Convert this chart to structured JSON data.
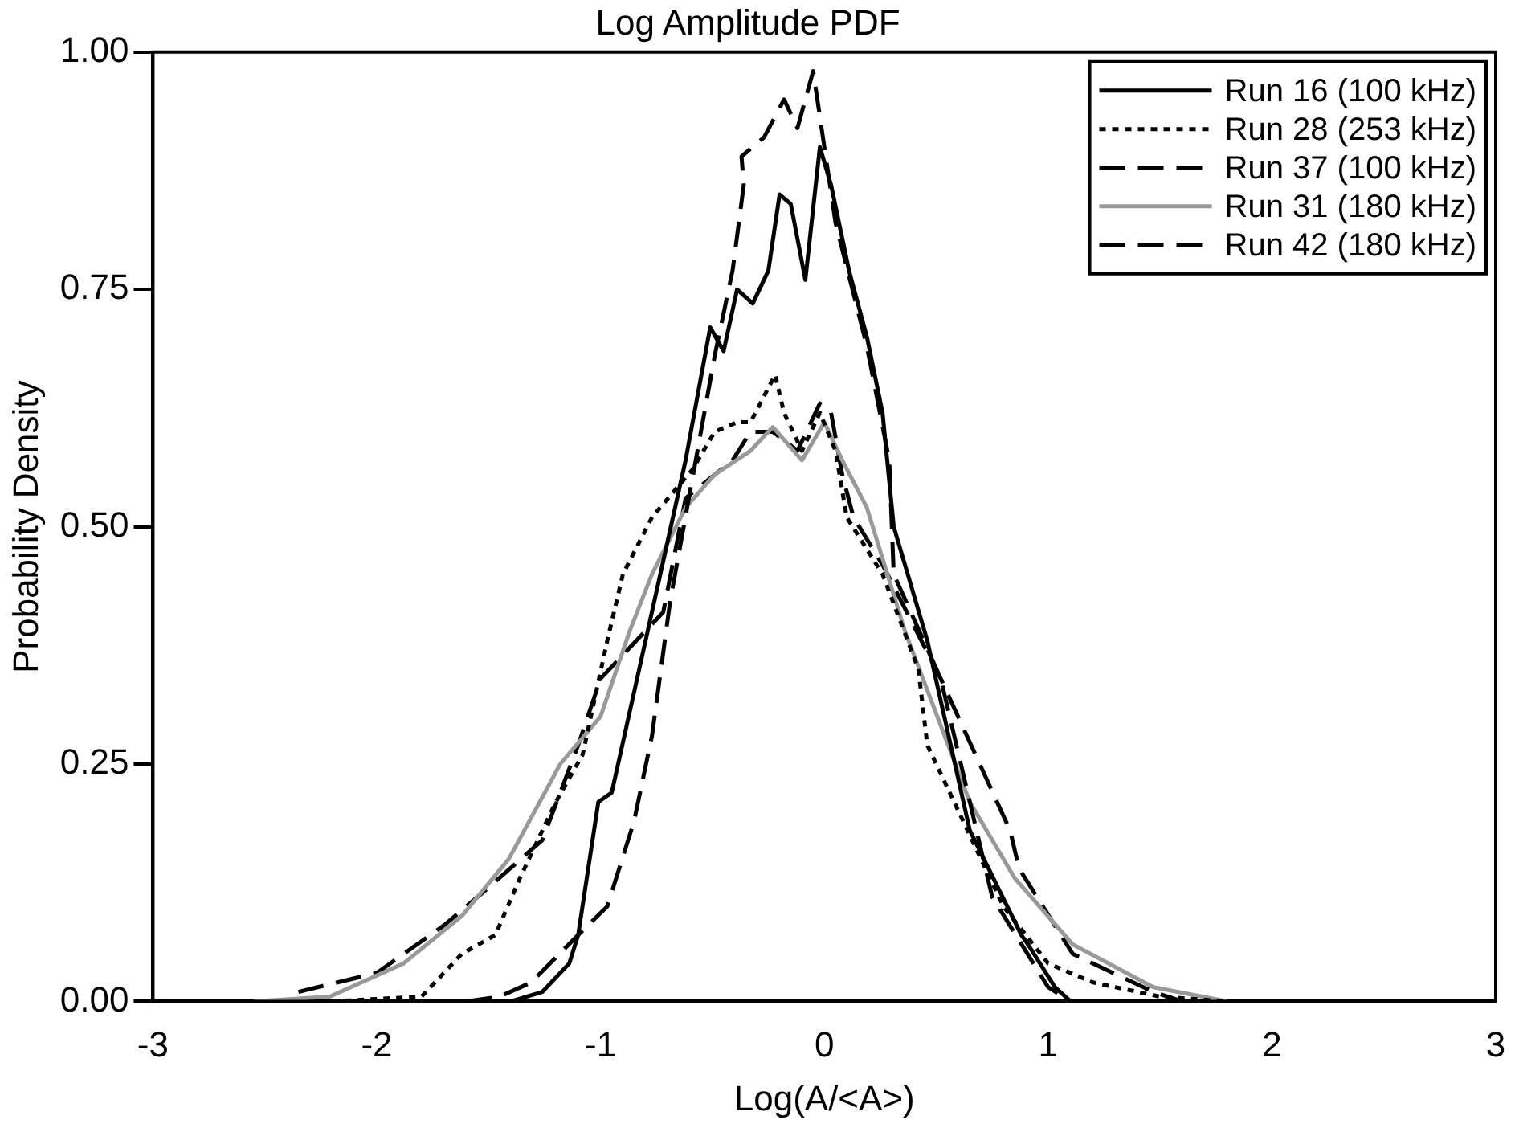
{
  "chart_data": {
    "type": "line",
    "title": "Log Amplitude PDF",
    "xlabel": "Log(A/<A>)",
    "ylabel": "Probability Density",
    "xlim": [
      -3,
      3
    ],
    "xticks": [
      -3,
      -2,
      -1,
      0,
      1,
      2,
      3
    ],
    "ylim": [
      0,
      1
    ],
    "yticks": [
      {
        "value": 0,
        "label": "0.00"
      },
      {
        "value": 0.25,
        "label": "0.25"
      },
      {
        "value": 0.5,
        "label": "0.50"
      },
      {
        "value": 0.75,
        "label": "0.75"
      },
      {
        "value": 1,
        "label": "1.00"
      }
    ],
    "grid": false,
    "legend": "top right",
    "marker": "none",
    "series": [
      {
        "name": "Run 16 (100 kHz)",
        "color": "#000000",
        "line_style": "solid",
        "x": [
          -1.4,
          -1.26,
          -1.14,
          -1.1,
          -1.01,
          -0.95,
          -0.78,
          -0.62,
          -0.51,
          -0.45,
          -0.39,
          -0.32,
          -0.25,
          -0.2,
          -0.15,
          -0.085,
          -0.02,
          0.03,
          0.11,
          0.19,
          0.26,
          0.31,
          0.46,
          0.65,
          0.88,
          0.91,
          1.03,
          1.1
        ],
        "values": [
          0,
          0.01,
          0.04,
          0.07,
          0.21,
          0.22,
          0.4,
          0.57,
          0.71,
          0.685,
          0.75,
          0.735,
          0.77,
          0.85,
          0.84,
          0.76,
          0.9,
          0.86,
          0.77,
          0.7,
          0.62,
          0.5,
          0.38,
          0.18,
          0.07,
          0.06,
          0.015,
          0
        ]
      },
      {
        "name": "Run 28 (253 kHz)",
        "color": "#000000",
        "line_style": "dotted",
        "x": [
          -2.2,
          -1.8,
          -1.62,
          -1.47,
          -1.36,
          -1.2,
          -1.08,
          -0.97,
          -0.9,
          -0.77,
          -0.59,
          -0.49,
          -0.39,
          -0.33,
          -0.22,
          -0.18,
          -0.1,
          -0.02,
          0.05,
          0.1,
          0.26,
          0.42,
          0.46,
          0.5,
          0.6,
          0.8,
          1.0,
          1.2,
          1.5,
          1.8
        ],
        "values": [
          0,
          0.005,
          0.05,
          0.07,
          0.13,
          0.21,
          0.26,
          0.38,
          0.45,
          0.51,
          0.56,
          0.6,
          0.61,
          0.61,
          0.66,
          0.62,
          0.58,
          0.62,
          0.58,
          0.51,
          0.45,
          0.35,
          0.27,
          0.25,
          0.2,
          0.1,
          0.04,
          0.02,
          0.005,
          0
        ]
      },
      {
        "name": "Run 37 (100 kHz)",
        "color": "#000000",
        "line_style": "dashed",
        "x": [
          -1.6,
          -1.45,
          -1.31,
          -1.1,
          -0.97,
          -0.85,
          -0.77,
          -0.69,
          -0.49,
          -0.41,
          -0.36,
          -0.37,
          -0.27,
          -0.18,
          -0.12,
          -0.05,
          0.05,
          0.19,
          0.29,
          0.31,
          0.52,
          0.75,
          1.0,
          1.1
        ],
        "values": [
          0,
          0.005,
          0.02,
          0.07,
          0.1,
          0.19,
          0.28,
          0.42,
          0.68,
          0.77,
          0.86,
          0.89,
          0.91,
          0.95,
          0.92,
          0.98,
          0.82,
          0.69,
          0.57,
          0.45,
          0.34,
          0.11,
          0.015,
          0
        ]
      },
      {
        "name": "Run 31 (180 kHz)",
        "color": "#999999",
        "line_style": "solid",
        "x": [
          -2.55,
          -2.21,
          -1.88,
          -1.62,
          -1.41,
          -1.18,
          -1.0,
          -0.87,
          -0.77,
          -0.62,
          -0.49,
          -0.33,
          -0.23,
          -0.1,
          0,
          0.08,
          0.19,
          0.36,
          0.65,
          0.85,
          1.11,
          1.47,
          1.8
        ],
        "values": [
          0,
          0.005,
          0.04,
          0.09,
          0.15,
          0.25,
          0.3,
          0.39,
          0.45,
          0.52,
          0.555,
          0.58,
          0.605,
          0.57,
          0.61,
          0.57,
          0.52,
          0.39,
          0.21,
          0.13,
          0.06,
          0.015,
          0
        ]
      },
      {
        "name": "Run 42 (180 kHz)",
        "color": "#000000",
        "line_style": "dashed",
        "x": [
          -2.35,
          -2.0,
          -1.7,
          -1.5,
          -1.26,
          -1.1,
          -1.0,
          -0.72,
          -0.62,
          -0.41,
          -0.33,
          -0.23,
          -0.12,
          -0.02,
          0.03,
          0.08,
          0.13,
          0.26,
          0.52,
          0.83,
          0.87,
          1.11,
          1.47,
          1.6
        ],
        "values": [
          0.01,
          0.03,
          0.08,
          0.12,
          0.17,
          0.27,
          0.34,
          0.41,
          0.53,
          0.57,
          0.6,
          0.6,
          0.58,
          0.63,
          0.62,
          0.555,
          0.51,
          0.46,
          0.34,
          0.18,
          0.14,
          0.05,
          0.01,
          0
        ]
      }
    ]
  }
}
